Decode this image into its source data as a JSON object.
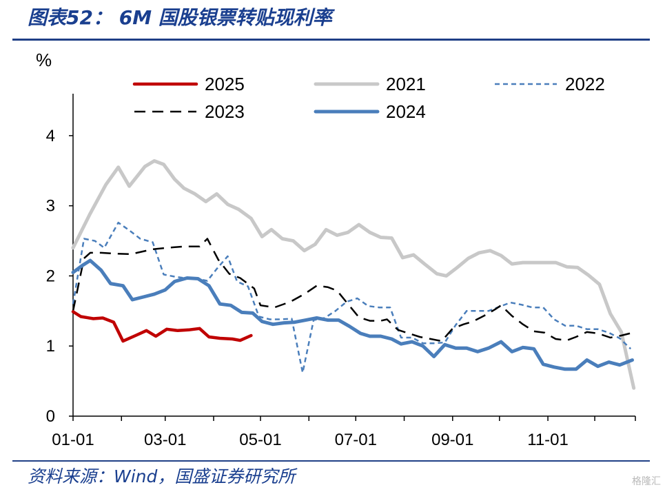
{
  "header": {
    "title": "图表52：  6M 国股银票转贴现利率"
  },
  "footer": {
    "source": "资料来源：Wind，国盛证券研究所",
    "watermark": "格隆汇"
  },
  "chart_data": {
    "type": "line",
    "title": "",
    "ylabel": "%",
    "xlabel": "",
    "ylim": [
      0,
      4.5
    ],
    "xlim": [
      1,
      361
    ],
    "yticks": [
      0,
      1,
      2,
      3,
      4
    ],
    "xticks": [
      {
        "label": "01-01",
        "day": 1
      },
      {
        "label": "03-01",
        "day": 60
      },
      {
        "label": "05-01",
        "day": 121
      },
      {
        "label": "07-01",
        "day": 182
      },
      {
        "label": "09-01",
        "day": 244
      },
      {
        "label": "11-01",
        "day": 305
      }
    ],
    "grid": false,
    "legend_position": "top",
    "legend_order": [
      "2025",
      "2021",
      "2022",
      "2023",
      "2024"
    ],
    "series": [
      {
        "name": "2025",
        "color": "#c00000",
        "style": "solid",
        "width": 4.5,
        "points": [
          [
            1,
            1.49
          ],
          [
            6,
            1.42
          ],
          [
            14,
            1.39
          ],
          [
            20,
            1.4
          ],
          [
            27,
            1.34
          ],
          [
            33,
            1.07
          ],
          [
            41,
            1.15
          ],
          [
            48,
            1.22
          ],
          [
            54,
            1.14
          ],
          [
            61,
            1.24
          ],
          [
            68,
            1.22
          ],
          [
            75,
            1.23
          ],
          [
            82,
            1.25
          ],
          [
            88,
            1.13
          ],
          [
            95,
            1.11
          ],
          [
            103,
            1.1
          ],
          [
            108,
            1.08
          ],
          [
            115,
            1.15
          ]
        ]
      },
      {
        "name": "2021",
        "color": "#c8c8c8",
        "style": "solid",
        "width": 5,
        "points": [
          [
            1,
            2.4
          ],
          [
            12,
            2.89
          ],
          [
            22,
            3.3
          ],
          [
            30,
            3.55
          ],
          [
            37,
            3.28
          ],
          [
            47,
            3.56
          ],
          [
            53,
            3.64
          ],
          [
            59,
            3.59
          ],
          [
            66,
            3.38
          ],
          [
            72,
            3.25
          ],
          [
            79,
            3.17
          ],
          [
            86,
            3.06
          ],
          [
            93,
            3.17
          ],
          [
            100,
            3.02
          ],
          [
            107,
            2.95
          ],
          [
            115,
            2.82
          ],
          [
            122,
            2.56
          ],
          [
            128,
            2.66
          ],
          [
            135,
            2.53
          ],
          [
            142,
            2.5
          ],
          [
            149,
            2.36
          ],
          [
            156,
            2.45
          ],
          [
            163,
            2.66
          ],
          [
            170,
            2.58
          ],
          [
            177,
            2.62
          ],
          [
            184,
            2.73
          ],
          [
            191,
            2.62
          ],
          [
            198,
            2.55
          ],
          [
            205,
            2.54
          ],
          [
            212,
            2.26
          ],
          [
            219,
            2.3
          ],
          [
            226,
            2.17
          ],
          [
            234,
            2.03
          ],
          [
            240,
            2.0
          ],
          [
            247,
            2.12
          ],
          [
            254,
            2.25
          ],
          [
            261,
            2.33
          ],
          [
            268,
            2.36
          ],
          [
            275,
            2.29
          ],
          [
            282,
            2.17
          ],
          [
            289,
            2.19
          ],
          [
            296,
            2.19
          ],
          [
            303,
            2.19
          ],
          [
            310,
            2.19
          ],
          [
            317,
            2.13
          ],
          [
            324,
            2.12
          ],
          [
            331,
            2.01
          ],
          [
            338,
            1.88
          ],
          [
            345,
            1.46
          ],
          [
            352,
            1.2
          ],
          [
            360,
            0.4
          ]
        ]
      },
      {
        "name": "2022",
        "color": "#4a7ebb",
        "style": "dotted",
        "width": 2.5,
        "points": [
          [
            1,
            1.6
          ],
          [
            8,
            2.53
          ],
          [
            15,
            2.5
          ],
          [
            21,
            2.4
          ],
          [
            30,
            2.76
          ],
          [
            37,
            2.65
          ],
          [
            44,
            2.53
          ],
          [
            52,
            2.48
          ],
          [
            59,
            2.02
          ],
          [
            66,
            1.99
          ],
          [
            72,
            1.97
          ],
          [
            80,
            1.96
          ],
          [
            87,
            1.93
          ],
          [
            93,
            2.1
          ],
          [
            100,
            2.28
          ],
          [
            106,
            1.92
          ],
          [
            113,
            1.85
          ],
          [
            120,
            1.42
          ],
          [
            127,
            1.38
          ],
          [
            134,
            1.38
          ],
          [
            141,
            1.39
          ],
          [
            148,
            0.62
          ],
          [
            155,
            1.37
          ],
          [
            162,
            1.4
          ],
          [
            169,
            1.5
          ],
          [
            176,
            1.63
          ],
          [
            183,
            1.68
          ],
          [
            190,
            1.57
          ],
          [
            197,
            1.55
          ],
          [
            204,
            1.55
          ],
          [
            211,
            1.12
          ],
          [
            218,
            1.12
          ],
          [
            225,
            1.04
          ],
          [
            232,
            1.04
          ],
          [
            239,
            1.05
          ],
          [
            246,
            1.3
          ],
          [
            253,
            1.5
          ],
          [
            260,
            1.5
          ],
          [
            267,
            1.5
          ],
          [
            274,
            1.56
          ],
          [
            281,
            1.62
          ],
          [
            288,
            1.59
          ],
          [
            295,
            1.55
          ],
          [
            302,
            1.55
          ],
          [
            309,
            1.38
          ],
          [
            316,
            1.29
          ],
          [
            323,
            1.29
          ],
          [
            330,
            1.24
          ],
          [
            337,
            1.24
          ],
          [
            344,
            1.19
          ],
          [
            351,
            1.11
          ],
          [
            358,
            0.96
          ]
        ]
      },
      {
        "name": "2023",
        "color": "#000000",
        "style": "dashed",
        "width": 2.5,
        "points": [
          [
            1,
            1.5
          ],
          [
            8,
            2.25
          ],
          [
            12,
            2.33
          ],
          [
            19,
            2.33
          ],
          [
            26,
            2.32
          ],
          [
            38,
            2.31
          ],
          [
            52,
            2.38
          ],
          [
            61,
            2.4
          ],
          [
            72,
            2.42
          ],
          [
            82,
            2.42
          ],
          [
            87,
            2.53
          ],
          [
            94,
            2.23
          ],
          [
            101,
            2.03
          ],
          [
            108,
            1.97
          ],
          [
            117,
            1.82
          ],
          [
            121,
            1.58
          ],
          [
            130,
            1.55
          ],
          [
            140,
            1.63
          ],
          [
            149,
            1.74
          ],
          [
            157,
            1.86
          ],
          [
            164,
            1.84
          ],
          [
            170,
            1.79
          ],
          [
            177,
            1.6
          ],
          [
            184,
            1.41
          ],
          [
            191,
            1.36
          ],
          [
            198,
            1.36
          ],
          [
            202,
            1.38
          ],
          [
            209,
            1.23
          ],
          [
            216,
            1.18
          ],
          [
            223,
            1.13
          ],
          [
            230,
            1.1
          ],
          [
            237,
            1.07
          ],
          [
            244,
            1.25
          ],
          [
            251,
            1.31
          ],
          [
            257,
            1.35
          ],
          [
            264,
            1.43
          ],
          [
            271,
            1.52
          ],
          [
            275,
            1.58
          ],
          [
            282,
            1.43
          ],
          [
            289,
            1.31
          ],
          [
            296,
            1.21
          ],
          [
            303,
            1.19
          ],
          [
            310,
            1.1
          ],
          [
            317,
            1.08
          ],
          [
            323,
            1.13
          ],
          [
            330,
            1.2
          ],
          [
            337,
            1.18
          ],
          [
            345,
            1.12
          ],
          [
            352,
            1.15
          ],
          [
            361,
            1.2
          ]
        ]
      },
      {
        "name": "2024",
        "color": "#4a7ebb",
        "style": "solid",
        "width": 5,
        "points": [
          [
            1,
            2.05
          ],
          [
            7,
            2.15
          ],
          [
            12,
            2.22
          ],
          [
            19,
            2.08
          ],
          [
            25,
            1.89
          ],
          [
            33,
            1.86
          ],
          [
            39,
            1.66
          ],
          [
            46,
            1.7
          ],
          [
            53,
            1.74
          ],
          [
            60,
            1.8
          ],
          [
            66,
            1.92
          ],
          [
            74,
            1.97
          ],
          [
            81,
            1.96
          ],
          [
            88,
            1.86
          ],
          [
            95,
            1.6
          ],
          [
            102,
            1.58
          ],
          [
            109,
            1.48
          ],
          [
            116,
            1.47
          ],
          [
            122,
            1.35
          ],
          [
            129,
            1.31
          ],
          [
            136,
            1.33
          ],
          [
            143,
            1.34
          ],
          [
            150,
            1.37
          ],
          [
            157,
            1.4
          ],
          [
            164,
            1.37
          ],
          [
            171,
            1.37
          ],
          [
            178,
            1.28
          ],
          [
            185,
            1.18
          ],
          [
            191,
            1.14
          ],
          [
            198,
            1.14
          ],
          [
            205,
            1.1
          ],
          [
            211,
            1.03
          ],
          [
            218,
            1.06
          ],
          [
            225,
            1.0
          ],
          [
            232,
            0.85
          ],
          [
            239,
            1.02
          ],
          [
            246,
            0.97
          ],
          [
            253,
            0.97
          ],
          [
            260,
            0.92
          ],
          [
            267,
            0.97
          ],
          [
            275,
            1.06
          ],
          [
            282,
            0.92
          ],
          [
            289,
            0.98
          ],
          [
            296,
            0.96
          ],
          [
            302,
            0.74
          ],
          [
            309,
            0.7
          ],
          [
            316,
            0.67
          ],
          [
            323,
            0.67
          ],
          [
            330,
            0.8
          ],
          [
            337,
            0.71
          ],
          [
            344,
            0.77
          ],
          [
            351,
            0.73
          ],
          [
            359,
            0.8
          ]
        ]
      }
    ]
  }
}
